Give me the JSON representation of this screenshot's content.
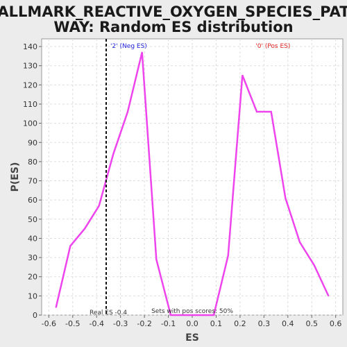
{
  "chart_data": {
    "type": "line",
    "title_lines": [
      "HALLMARK_REACTIVE_OXYGEN_SPECIES_PATH",
      "WAY: Random ES distribution"
    ],
    "xlabel": "ES",
    "ylabel": "P(ES)",
    "xlim": [
      -0.63,
      0.63
    ],
    "ylim": [
      0,
      144
    ],
    "xticks": [
      -0.6,
      -0.5,
      -0.4,
      -0.3,
      -0.2,
      -0.1,
      0.0,
      0.1,
      0.2,
      0.3,
      0.4,
      0.5,
      0.6
    ],
    "xtick_labels": [
      "-0.6",
      "-0.5",
      "-0.4",
      "-0.3",
      "-0.2",
      "-0.1",
      "0.0",
      "0.1",
      "0.2",
      "0.3",
      "0.4",
      "0.5",
      "0.6"
    ],
    "yticks": [
      0,
      10,
      20,
      30,
      40,
      50,
      60,
      70,
      80,
      90,
      100,
      110,
      120,
      130,
      140
    ],
    "ytick_labels": [
      "0",
      "10",
      "20",
      "30",
      "40",
      "50",
      "60",
      "70",
      "80",
      "90",
      "100",
      "110",
      "120",
      "130",
      "140"
    ],
    "grid": true,
    "series": [
      {
        "color": "#ee44ee",
        "x": [
          -0.57,
          -0.51,
          -0.45,
          -0.39,
          -0.33,
          -0.27,
          -0.21,
          -0.15,
          -0.09,
          -0.03,
          0.03,
          0.09,
          0.15,
          0.21,
          0.27,
          0.33,
          0.39,
          0.45,
          0.51,
          0.57
        ],
        "y": [
          4,
          36,
          45,
          57,
          84,
          106,
          137,
          29,
          0,
          0,
          0,
          0,
          31,
          125,
          106,
          106,
          61,
          38,
          26,
          10
        ]
      }
    ],
    "real_es": -0.36,
    "real_es_label": "Real ES -0.4",
    "neg_label": "'2' (Neg ES)",
    "pos_label": "'0' (Pos ES)",
    "neg_color": "#2222dd",
    "pos_color": "#dd2222",
    "pos_scores_label": "Sets with pos scores: 50%"
  }
}
